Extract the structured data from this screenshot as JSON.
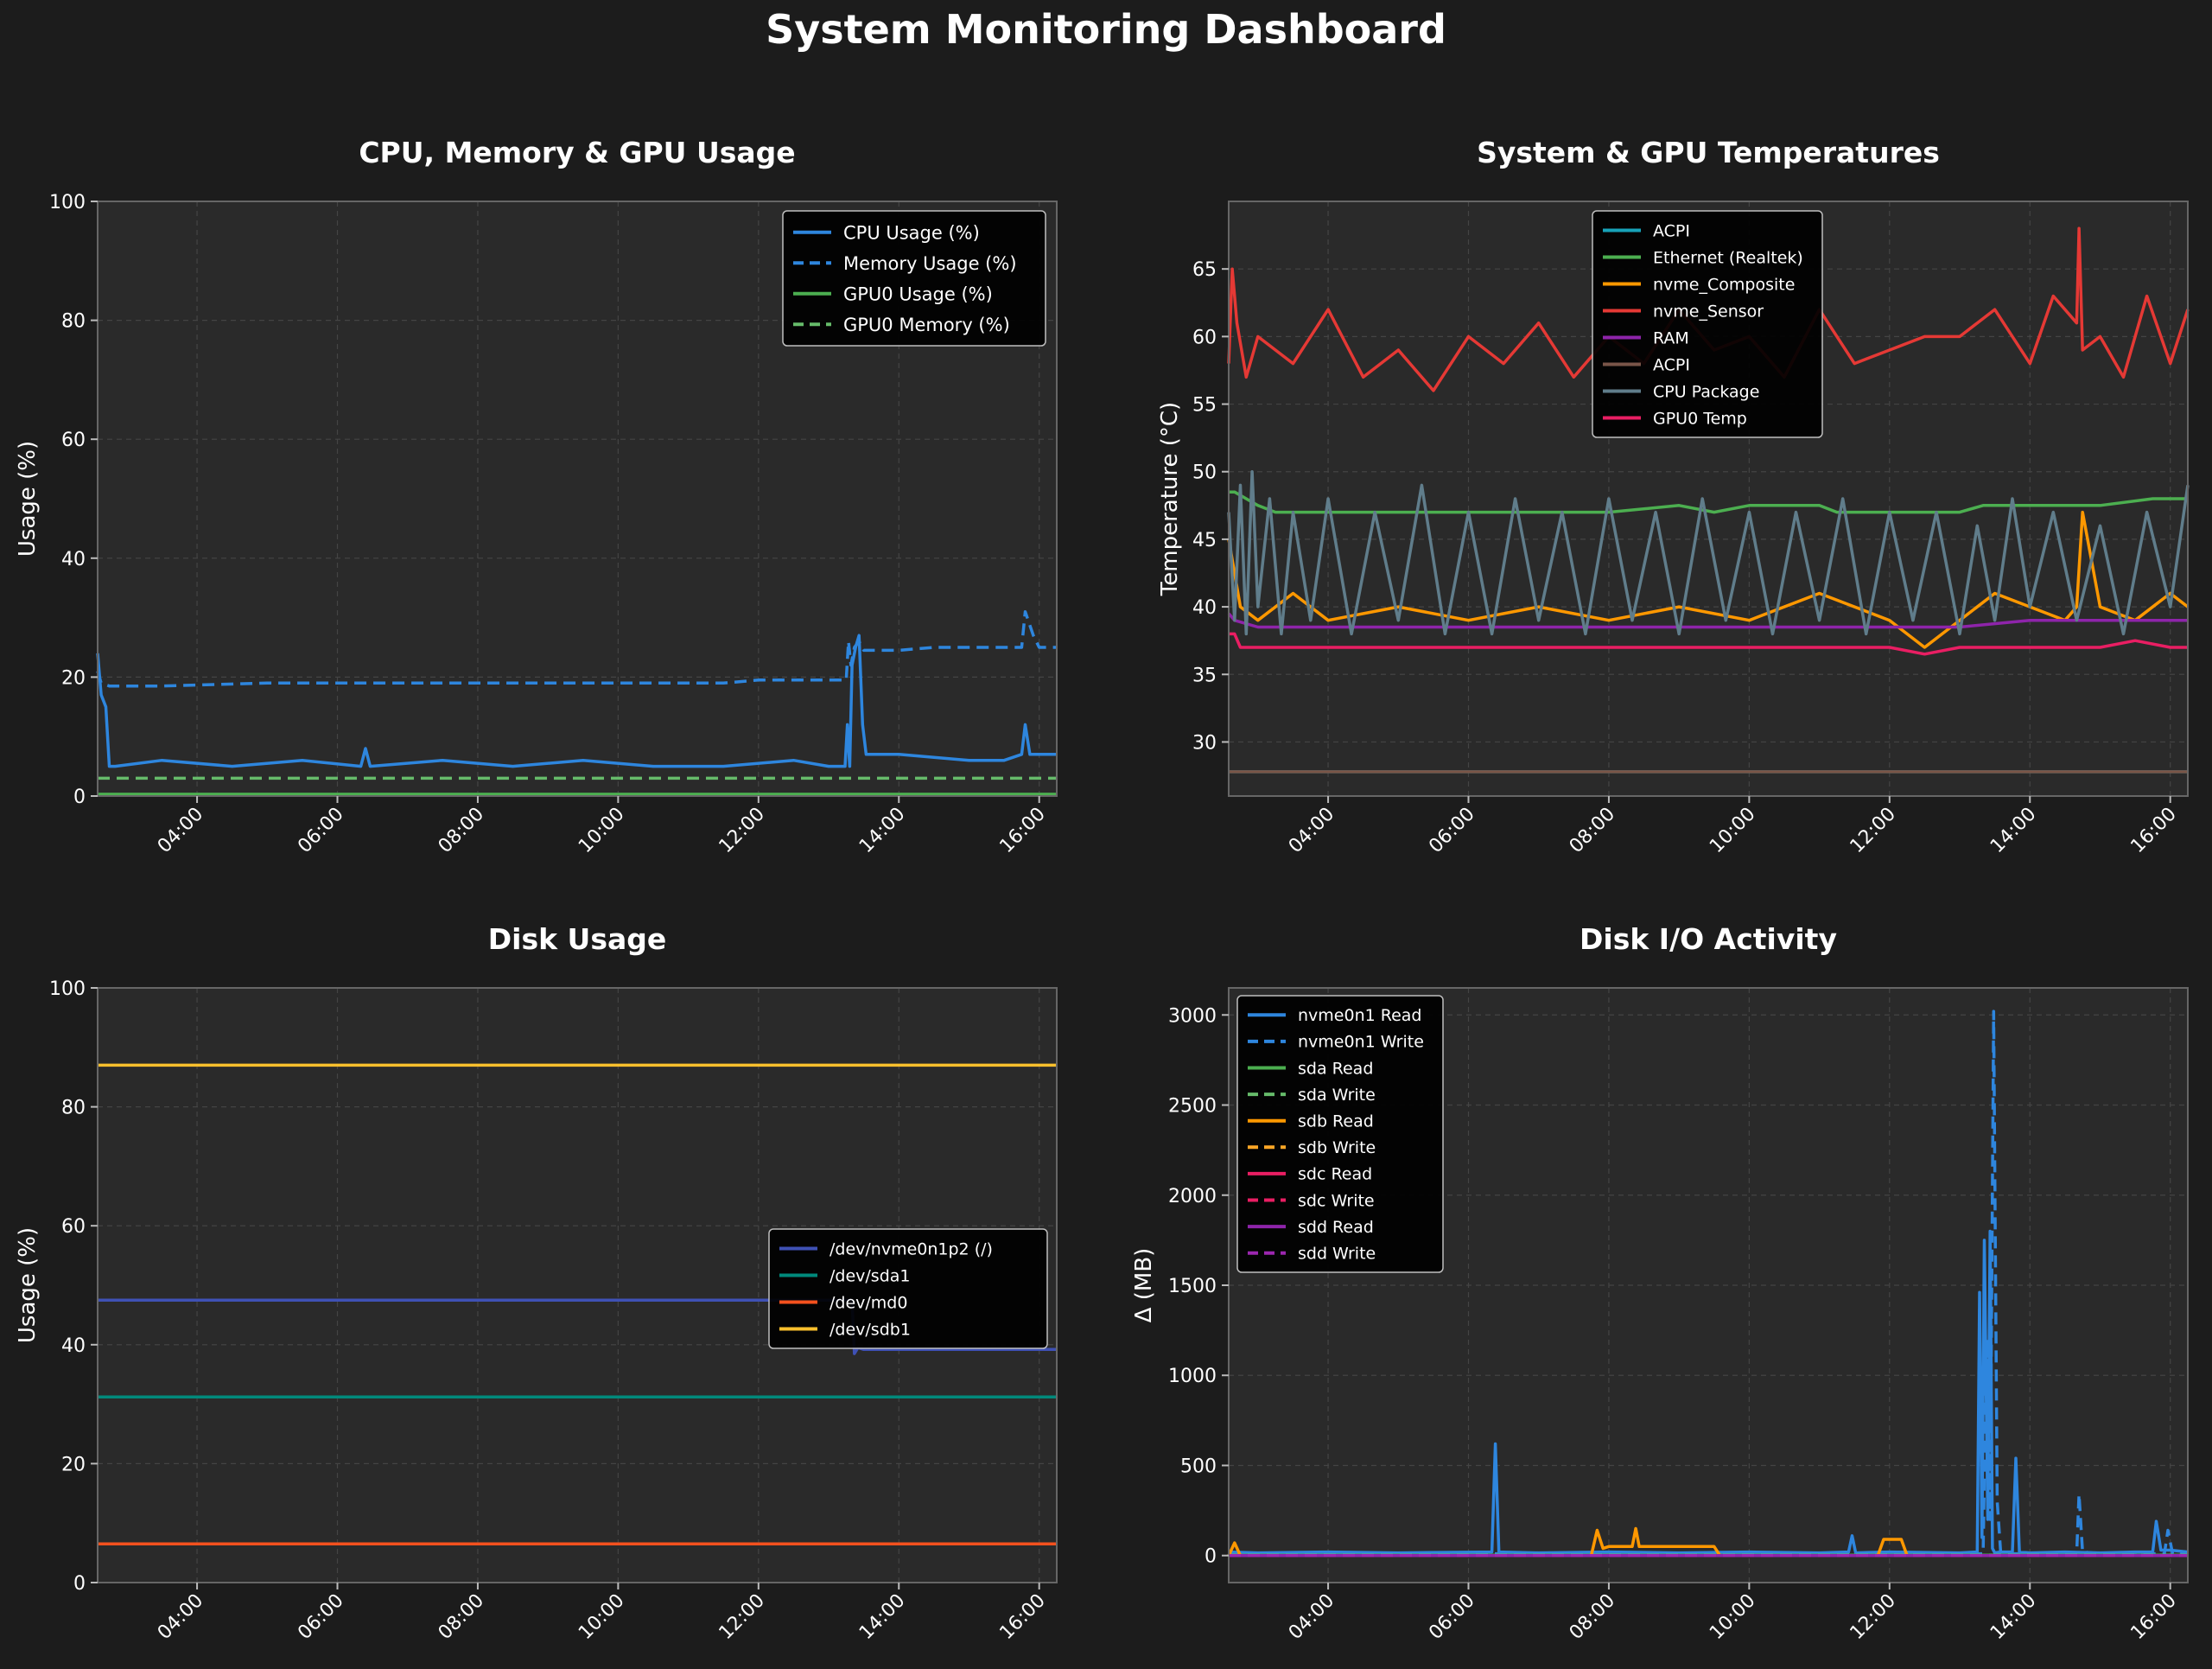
{
  "dashboard": {
    "title": "System Monitoring Dashboard"
  },
  "colors": {
    "page_bg": "#1c1c1c",
    "plot_bg": "#2a2a2a",
    "grid": "#444444",
    "axis": "#666666",
    "text": "#ffffff"
  },
  "chart_data": [
    {
      "id": "cpu",
      "type": "line",
      "title": "CPU, Memory & GPU Usage",
      "xlabel": "",
      "ylabel": "Usage (%)",
      "xlim": [
        "02:35",
        "16:15"
      ],
      "ylim": [
        0,
        100
      ],
      "yticks": [
        0,
        20,
        40,
        60,
        80,
        100
      ],
      "ytick_labels": [
        "0",
        "20",
        "40",
        "60",
        "80",
        "100"
      ],
      "xticks": [
        "04:00",
        "06:00",
        "08:00",
        "10:00",
        "12:00",
        "14:00",
        "16:00"
      ],
      "grid": true,
      "legend_position": "top-right",
      "series": [
        {
          "name": "CPU Usage (%)",
          "color": "#2e86de",
          "style": "solid",
          "x": [
            "02:35",
            "02:38",
            "02:42",
            "02:45",
            "02:50",
            "03:30",
            "04:30",
            "05:30",
            "06:20",
            "06:24",
            "06:28",
            "07:30",
            "08:30",
            "09:30",
            "10:30",
            "11:30",
            "12:30",
            "13:00",
            "13:14",
            "13:16",
            "13:18",
            "13:20",
            "13:23",
            "13:26",
            "13:29",
            "13:32",
            "13:35",
            "13:40",
            "14:00",
            "15:00",
            "15:30",
            "15:45",
            "15:48",
            "15:52",
            "16:00",
            "16:15"
          ],
          "values": [
            24,
            17,
            15,
            5,
            5,
            6,
            5,
            6,
            5,
            8,
            5,
            6,
            5,
            6,
            5,
            5,
            6,
            5,
            5,
            12,
            5,
            22,
            25,
            27,
            12,
            7,
            7,
            7,
            7,
            6,
            6,
            7,
            12,
            7,
            7,
            7
          ]
        },
        {
          "name": "Memory Usage (%)",
          "color": "#2e86de",
          "style": "dashed",
          "x": [
            "02:35",
            "02:38",
            "02:45",
            "03:30",
            "05:00",
            "06:30",
            "07:30",
            "08:30",
            "09:30",
            "10:30",
            "11:30",
            "12:00",
            "12:30",
            "13:00",
            "13:15",
            "13:17",
            "13:19",
            "13:22",
            "13:26",
            "13:30",
            "13:35",
            "14:00",
            "14:30",
            "15:00",
            "15:30",
            "15:45",
            "15:48",
            "15:55",
            "16:00",
            "16:15"
          ],
          "values": [
            21,
            19,
            18.5,
            18.5,
            19,
            19,
            19,
            19,
            19,
            19,
            19,
            19.5,
            19.5,
            19.5,
            19.5,
            26,
            22,
            25,
            26,
            24.5,
            24.5,
            24.5,
            25,
            25,
            25,
            25,
            31,
            27,
            25,
            25
          ]
        },
        {
          "name": "GPU0 Usage (%)",
          "color": "#4caf50",
          "style": "solid",
          "x": [
            "02:35",
            "16:15"
          ],
          "values": [
            0.3,
            0.3
          ]
        },
        {
          "name": "GPU0 Memory (%)",
          "color": "#66bb6a",
          "style": "dashed",
          "x": [
            "02:35",
            "16:15"
          ],
          "values": [
            3,
            3
          ]
        }
      ]
    },
    {
      "id": "temp",
      "type": "line",
      "title": "System & GPU Temperatures",
      "xlabel": "",
      "ylabel": "Temperature (°C)",
      "xlim": [
        "02:35",
        "16:15"
      ],
      "ylim": [
        26,
        70
      ],
      "yticks": [
        30,
        35,
        40,
        45,
        50,
        55,
        60,
        65
      ],
      "ytick_labels": [
        "30",
        "35",
        "40",
        "45",
        "50",
        "55",
        "60",
        "65"
      ],
      "xticks": [
        "04:00",
        "06:00",
        "08:00",
        "10:00",
        "12:00",
        "14:00",
        "16:00"
      ],
      "grid": true,
      "legend_position": "top-center",
      "series": [
        {
          "name": "ACPI",
          "color": "#17a2b8",
          "style": "solid",
          "x": [
            "02:35",
            "16:15"
          ],
          "values": [
            27.8,
            27.8
          ]
        },
        {
          "name": "Ethernet (Realtek)",
          "color": "#4caf50",
          "style": "solid",
          "x": [
            "02:35",
            "02:40",
            "02:50",
            "03:00",
            "03:15",
            "05:00",
            "07:00",
            "08:00",
            "09:00",
            "09:30",
            "10:00",
            "11:00",
            "11:15",
            "12:00",
            "13:00",
            "13:20",
            "14:00",
            "15:00",
            "15:45",
            "16:00",
            "16:15"
          ],
          "values": [
            48.5,
            48.5,
            48,
            47.5,
            47,
            47,
            47,
            47,
            47.5,
            47,
            47.5,
            47.5,
            47,
            47,
            47,
            47.5,
            47.5,
            47.5,
            48,
            48,
            48
          ]
        },
        {
          "name": "nvme_Composite",
          "color": "#ff9800",
          "style": "solid",
          "x": [
            "02:35",
            "02:45",
            "03:00",
            "03:30",
            "04:00",
            "05:00",
            "06:00",
            "07:00",
            "08:00",
            "09:00",
            "10:00",
            "11:00",
            "12:00",
            "12:30",
            "13:00",
            "13:30",
            "14:00",
            "14:30",
            "14:40",
            "14:45",
            "15:00",
            "15:30",
            "16:00",
            "16:15"
          ],
          "values": [
            45,
            40,
            39,
            41,
            39,
            40,
            39,
            40,
            39,
            40,
            39,
            41,
            39,
            37,
            39,
            41,
            40,
            39,
            40,
            47,
            40,
            39,
            41,
            40
          ]
        },
        {
          "name": "nvme_Sensor",
          "color": "#e53935",
          "style": "solid",
          "x": [
            "02:35",
            "02:38",
            "02:42",
            "02:50",
            "03:00",
            "03:30",
            "04:00",
            "04:30",
            "05:00",
            "05:30",
            "06:00",
            "06:30",
            "07:00",
            "07:30",
            "08:00",
            "08:30",
            "09:00",
            "09:30",
            "10:00",
            "10:30",
            "11:00",
            "11:30",
            "12:00",
            "12:30",
            "13:00",
            "13:30",
            "14:00",
            "14:20",
            "14:40",
            "14:42",
            "14:45",
            "15:00",
            "15:20",
            "15:40",
            "16:00",
            "16:15"
          ],
          "values": [
            58,
            65,
            61,
            57,
            60,
            58,
            62,
            57,
            59,
            56,
            60,
            58,
            61,
            57,
            60,
            58,
            62,
            59,
            60,
            57,
            62,
            58,
            59,
            60,
            60,
            62,
            58,
            63,
            61,
            68,
            59,
            60,
            57,
            63,
            58,
            62
          ]
        },
        {
          "name": "RAM",
          "color": "#8e24aa",
          "style": "solid",
          "x": [
            "02:35",
            "02:40",
            "03:00",
            "05:00",
            "08:00",
            "11:00",
            "13:00",
            "14:00",
            "16:00",
            "16:15"
          ],
          "values": [
            39.5,
            39,
            38.5,
            38.5,
            38.5,
            38.5,
            38.5,
            39,
            39,
            39
          ]
        },
        {
          "name": "ACPI",
          "color": "#795548",
          "style": "solid",
          "x": [
            "02:35",
            "16:15"
          ],
          "values": [
            27.8,
            27.8
          ]
        },
        {
          "name": "CPU Package",
          "color": "#607d8b",
          "style": "solid",
          "x": [
            "02:35",
            "02:40",
            "02:45",
            "02:50",
            "02:55",
            "03:00",
            "03:10",
            "03:20",
            "03:30",
            "03:45",
            "04:00",
            "04:20",
            "04:40",
            "05:00",
            "05:20",
            "05:40",
            "06:00",
            "06:20",
            "06:40",
            "07:00",
            "07:20",
            "07:40",
            "08:00",
            "08:20",
            "08:40",
            "09:00",
            "09:20",
            "09:40",
            "10:00",
            "10:20",
            "10:40",
            "11:00",
            "11:20",
            "11:40",
            "12:00",
            "12:20",
            "12:40",
            "13:00",
            "13:15",
            "13:30",
            "13:45",
            "14:00",
            "14:20",
            "14:40",
            "15:00",
            "15:20",
            "15:40",
            "16:00",
            "16:15"
          ],
          "values": [
            47,
            39,
            49,
            38,
            50,
            40,
            48,
            38,
            47,
            39,
            48,
            38,
            47,
            39,
            49,
            38,
            47,
            38,
            48,
            39,
            47,
            38,
            48,
            39,
            47,
            38,
            48,
            39,
            47,
            38,
            47,
            39,
            48,
            38,
            47,
            39,
            47,
            38,
            46,
            39,
            48,
            40,
            47,
            39,
            46,
            38,
            47,
            40,
            49
          ]
        },
        {
          "name": "GPU0 Temp",
          "color": "#e91e63",
          "style": "solid",
          "x": [
            "02:35",
            "02:40",
            "02:45",
            "03:00",
            "05:00",
            "07:00",
            "09:00",
            "11:00",
            "12:00",
            "12:30",
            "13:00",
            "13:30",
            "14:00",
            "15:00",
            "15:30",
            "16:00",
            "16:15"
          ],
          "values": [
            38,
            38,
            37,
            37,
            37,
            37,
            37,
            37,
            37,
            36.5,
            37,
            37,
            37,
            37,
            37.5,
            37,
            37
          ]
        }
      ]
    },
    {
      "id": "disk",
      "type": "line",
      "title": "Disk Usage",
      "xlabel": "",
      "ylabel": "Usage (%)",
      "xlim": [
        "02:35",
        "16:15"
      ],
      "ylim": [
        0,
        100
      ],
      "yticks": [
        0,
        20,
        40,
        60,
        80,
        100
      ],
      "ytick_labels": [
        "0",
        "20",
        "40",
        "60",
        "80",
        "100"
      ],
      "xticks": [
        "04:00",
        "06:00",
        "08:00",
        "10:00",
        "12:00",
        "14:00",
        "16:00"
      ],
      "grid": true,
      "legend_position": "center-right",
      "series": [
        {
          "name": "/dev/nvme0n1p2 (/)",
          "color": "#3f51b5",
          "style": "solid",
          "x": [
            "02:35",
            "13:20",
            "13:22",
            "13:25",
            "13:30",
            "16:15"
          ],
          "values": [
            47.5,
            47.5,
            38.5,
            39.5,
            39.2,
            39.2
          ]
        },
        {
          "name": "/dev/sda1",
          "color": "#00897b",
          "style": "solid",
          "x": [
            "02:35",
            "16:15"
          ],
          "values": [
            31.2,
            31.2
          ]
        },
        {
          "name": "/dev/md0",
          "color": "#f4511e",
          "style": "solid",
          "x": [
            "02:35",
            "16:15"
          ],
          "values": [
            6.5,
            6.5
          ]
        },
        {
          "name": "/dev/sdb1",
          "color": "#fbc02d",
          "style": "solid",
          "x": [
            "02:35",
            "16:15"
          ],
          "values": [
            87,
            87
          ]
        }
      ]
    },
    {
      "id": "io",
      "type": "line",
      "title": "Disk I/O Activity",
      "xlabel": "",
      "ylabel": "Δ (MB)",
      "xlim": [
        "02:35",
        "16:15"
      ],
      "ylim": [
        -150,
        3150
      ],
      "yticks": [
        0,
        500,
        1000,
        1500,
        2000,
        2500,
        3000
      ],
      "ytick_labels": [
        "0",
        "500",
        "1000",
        "1500",
        "2000",
        "2500",
        "3000"
      ],
      "xticks": [
        "04:00",
        "06:00",
        "08:00",
        "10:00",
        "12:00",
        "14:00",
        "16:00"
      ],
      "grid": true,
      "legend_position": "top-left",
      "series": [
        {
          "name": "nvme0n1 Read",
          "color": "#2e86de",
          "style": "solid",
          "x": [
            "02:35",
            "03:00",
            "04:00",
            "05:00",
            "06:20",
            "06:23",
            "06:26",
            "07:00",
            "08:00",
            "09:00",
            "10:00",
            "11:00",
            "11:25",
            "11:28",
            "11:31",
            "12:00",
            "13:00",
            "13:15",
            "13:17",
            "13:19",
            "13:21",
            "13:24",
            "13:26",
            "13:28",
            "13:30",
            "13:35",
            "13:45",
            "13:48",
            "13:51",
            "14:00",
            "14:30",
            "15:00",
            "15:30",
            "15:45",
            "15:48",
            "15:52",
            "16:00",
            "16:15"
          ],
          "values": [
            20,
            15,
            20,
            15,
            20,
            620,
            20,
            15,
            20,
            15,
            20,
            15,
            20,
            110,
            15,
            20,
            15,
            20,
            1460,
            100,
            1750,
            200,
            1800,
            40,
            15,
            20,
            20,
            540,
            20,
            15,
            20,
            15,
            20,
            20,
            190,
            30,
            30,
            20
          ]
        },
        {
          "name": "nvme0n1 Write",
          "color": "#2e86de",
          "style": "dashed",
          "x": [
            "02:35",
            "07:00",
            "13:20",
            "13:23",
            "13:26",
            "13:29",
            "13:32",
            "13:35",
            "13:40",
            "14:00",
            "14:40",
            "14:42",
            "14:45",
            "15:00",
            "15:55",
            "15:58",
            "16:02",
            "16:15"
          ],
          "values": [
            10,
            10,
            10,
            1200,
            200,
            3020,
            300,
            20,
            10,
            10,
            10,
            340,
            20,
            10,
            10,
            140,
            10,
            10
          ]
        },
        {
          "name": "sda Read",
          "color": "#4caf50",
          "style": "solid",
          "x": [
            "02:35",
            "16:15"
          ],
          "values": [
            2,
            2
          ]
        },
        {
          "name": "sda Write",
          "color": "#66bb6a",
          "style": "dashed",
          "x": [
            "02:35",
            "16:15"
          ],
          "values": [
            2,
            2
          ]
        },
        {
          "name": "sdb Read",
          "color": "#ff9800",
          "style": "solid",
          "x": [
            "02:35",
            "02:40",
            "02:45",
            "07:45",
            "07:50",
            "07:55",
            "08:00",
            "08:20",
            "08:23",
            "08:26",
            "08:30",
            "09:30",
            "09:35",
            "11:50",
            "11:55",
            "12:10",
            "12:15",
            "16:15"
          ],
          "values": [
            0,
            70,
            0,
            0,
            140,
            40,
            50,
            50,
            150,
            50,
            50,
            50,
            0,
            0,
            90,
            90,
            0,
            0
          ]
        },
        {
          "name": "sdb Write",
          "color": "#ffa726",
          "style": "dashed",
          "x": [
            "02:35",
            "16:15"
          ],
          "values": [
            0,
            0
          ]
        },
        {
          "name": "sdc Read",
          "color": "#e91e63",
          "style": "solid",
          "x": [
            "02:35",
            "16:15"
          ],
          "values": [
            0,
            0
          ]
        },
        {
          "name": "sdc Write",
          "color": "#e91e63",
          "style": "dashed",
          "x": [
            "02:35",
            "16:15"
          ],
          "values": [
            0,
            0
          ]
        },
        {
          "name": "sdd Read",
          "color": "#8e24aa",
          "style": "solid",
          "x": [
            "02:35",
            "16:15"
          ],
          "values": [
            0,
            0
          ]
        },
        {
          "name": "sdd Write",
          "color": "#9c27b0",
          "style": "dashed",
          "x": [
            "02:35",
            "16:15"
          ],
          "values": [
            0,
            0
          ]
        }
      ]
    }
  ]
}
